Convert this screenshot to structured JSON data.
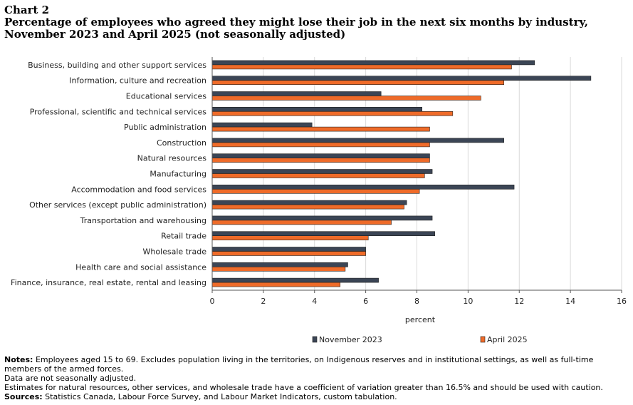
{
  "chart_label": "Chart 2",
  "title": "Percentage of employees who agreed they might lose their job in the next six months by industry, November 2023 and April 2025 (not seasonally adjusted)",
  "chart_data": {
    "type": "bar",
    "orientation": "horizontal",
    "categories": [
      "Business, building and other support services",
      "Information, culture and recreation",
      "Educational services",
      "Professional, scientific and technical services",
      "Public administration",
      "Construction",
      "Natural resources",
      "Manufacturing",
      "Accommodation and food services",
      "Other services (except public administration)",
      "Transportation and warehousing",
      "Retail trade",
      "Wholesale trade",
      "Health care and social assistance",
      "Finance, insurance, real estate, rental and leasing"
    ],
    "series": [
      {
        "name": "November 2023",
        "color": "#3b4555",
        "values": [
          12.6,
          14.8,
          6.6,
          8.2,
          3.9,
          11.4,
          8.5,
          8.6,
          11.8,
          7.6,
          8.6,
          8.7,
          6.0,
          5.3,
          6.5
        ]
      },
      {
        "name": "April 2025",
        "color": "#ef6b29",
        "values": [
          11.7,
          11.4,
          10.5,
          9.4,
          8.5,
          8.5,
          8.5,
          8.3,
          8.1,
          7.5,
          7.0,
          6.1,
          6.0,
          5.2,
          5.0
        ]
      }
    ],
    "xlim": [
      0,
      16
    ],
    "xticks": [
      0,
      2,
      4,
      6,
      8,
      10,
      12,
      14,
      16
    ],
    "xlabel": "percent",
    "ylabel": "",
    "grid": true,
    "legend": "bottom"
  },
  "notes": {
    "notes_heading": "Notes:",
    "notes_line1": "Employees aged 15 to 69. Excludes population living in the territories, on Indigenous reserves and in institutional settings, as well as full-time members of the armed forces.",
    "notes_line2": "Data are not seasonally adjusted.",
    "notes_line3": "Estimates for natural resources, other services, and wholesale trade have a coefficient of variation greater than 16.5% and should be used with caution.",
    "sources_heading": "Sources:",
    "sources_text": "Statistics Canada, Labour Force Survey, and Labour Market Indicators, custom tabulation."
  }
}
